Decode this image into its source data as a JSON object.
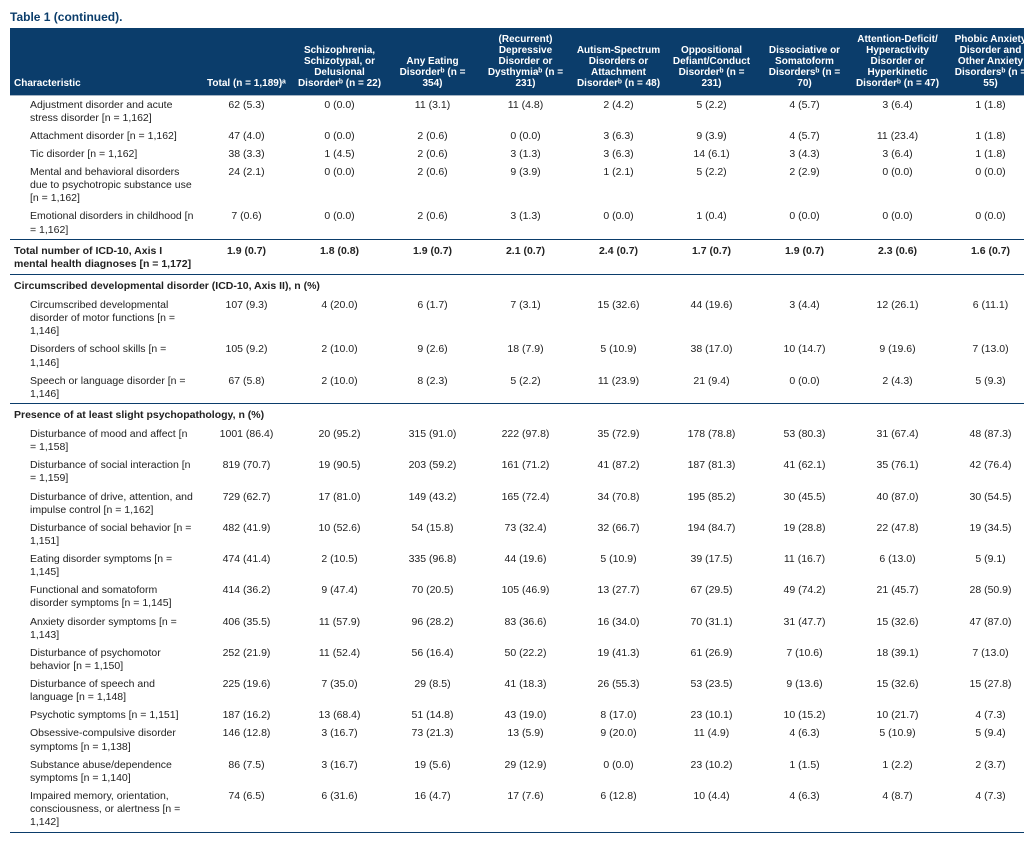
{
  "title": "Table 1 (continued).",
  "columns": [
    "Characteristic",
    "Total\n(n = 1,189)ᵃ",
    "Schizophrenia, Schizotypal, or Delusional Disorderᵇ (n = 22)",
    "Any Eating Disorderᵇ (n = 354)",
    "(Recurrent) Depressive Disorder or Dysthymiaᵇ (n = 231)",
    "Autism-Spectrum Disorders or Attachment Disorderᵇ (n = 48)",
    "Oppositional Defiant/Conduct Disorderᵇ (n = 231)",
    "Dissociative or Somatoform Disordersᵇ (n = 70)",
    "Attention-Deficit/ Hyperactivity Disorder or Hyperkinetic Disorderᵇ (n = 47)",
    "Phobic Anxiety Disorder and Other Anxiety Disordersᵇ (n = 55)"
  ],
  "rows": [
    {
      "type": "data",
      "cells": [
        "Adjustment disorder and acute stress disorder [n = 1,162]",
        "62 (5.3)",
        "0 (0.0)",
        "11 (3.1)",
        "11 (4.8)",
        "2 (4.2)",
        "5 (2.2)",
        "4 (5.7)",
        "3 (6.4)",
        "1 (1.8)"
      ]
    },
    {
      "type": "data",
      "cells": [
        "Attachment disorder [n = 1,162]",
        "47 (4.0)",
        "0 (0.0)",
        "2 (0.6)",
        "0 (0.0)",
        "3 (6.3)",
        "9 (3.9)",
        "4 (5.7)",
        "11 (23.4)",
        "1 (1.8)"
      ]
    },
    {
      "type": "data",
      "cells": [
        "Tic disorder [n = 1,162]",
        "38 (3.3)",
        "1 (4.5)",
        "2 (0.6)",
        "3 (1.3)",
        "3 (6.3)",
        "14 (6.1)",
        "3 (4.3)",
        "3 (6.4)",
        "1 (1.8)"
      ]
    },
    {
      "type": "data",
      "cells": [
        "Mental and behavioral disorders due to psychotropic substance use [n = 1,162]",
        "24 (2.1)",
        "0 (0.0)",
        "2 (0.6)",
        "9 (3.9)",
        "1 (2.1)",
        "5 (2.2)",
        "2 (2.9)",
        "0 (0.0)",
        "0 (0.0)"
      ]
    },
    {
      "type": "data",
      "cells": [
        "Emotional disorders in childhood [n = 1,162]",
        "7 (0.6)",
        "0 (0.0)",
        "2 (0.6)",
        "3 (1.3)",
        "0 (0.0)",
        "1 (0.4)",
        "0 (0.0)",
        "0 (0.0)",
        "0 (0.0)"
      ]
    },
    {
      "type": "section-data",
      "top": true,
      "cells": [
        "Total number of ICD-10, Axis I mental health diagnoses [n = 1,172]",
        "1.9 (0.7)",
        "1.8 (0.8)",
        "1.9 (0.7)",
        "2.1 (0.7)",
        "2.4 (0.7)",
        "1.7 (0.7)",
        "1.9 (0.7)",
        "2.3 (0.6)",
        "1.6 (0.7)"
      ]
    },
    {
      "type": "section",
      "top": true,
      "label": "Circumscribed developmental disorder (ICD-10, Axis II), n (%)"
    },
    {
      "type": "data",
      "cells": [
        "Circumscribed developmental disorder of motor functions [n = 1,146]",
        "107 (9.3)",
        "4 (20.0)",
        "6 (1.7)",
        "7 (3.1)",
        "15 (32.6)",
        "44 (19.6)",
        "3 (4.4)",
        "12 (26.1)",
        "6 (11.1)"
      ]
    },
    {
      "type": "data",
      "cells": [
        "Disorders of school skills [n = 1,146]",
        "105 (9.2)",
        "2 (10.0)",
        "9 (2.6)",
        "18 (7.9)",
        "5 (10.9)",
        "38 (17.0)",
        "10 (14.7)",
        "9 (19.6)",
        "7 (13.0)"
      ]
    },
    {
      "type": "data",
      "cells": [
        "Speech or language disorder [n = 1,146]",
        "67 (5.8)",
        "2 (10.0)",
        "8 (2.3)",
        "5 (2.2)",
        "11 (23.9)",
        "21 (9.4)",
        "0 (0.0)",
        "2 (4.3)",
        "5 (9.3)"
      ]
    },
    {
      "type": "section",
      "top": true,
      "label": "Presence of at least slight psychopathology, n (%)"
    },
    {
      "type": "data",
      "cells": [
        "Disturbance of mood and affect [n = 1,158]",
        "1001 (86.4)",
        "20 (95.2)",
        "315 (91.0)",
        "222 (97.8)",
        "35 (72.9)",
        "178 (78.8)",
        "53 (80.3)",
        "31 (67.4)",
        "48 (87.3)"
      ]
    },
    {
      "type": "data",
      "cells": [
        "Disturbance of social interaction [n = 1,159]",
        "819 (70.7)",
        "19 (90.5)",
        "203 (59.2)",
        "161 (71.2)",
        "41 (87.2)",
        "187 (81.3)",
        "41 (62.1)",
        "35 (76.1)",
        "42 (76.4)"
      ]
    },
    {
      "type": "data",
      "cells": [
        "Disturbance of drive, attention, and impulse control [n = 1,162]",
        "729 (62.7)",
        "17 (81.0)",
        "149 (43.2)",
        "165 (72.4)",
        "34 (70.8)",
        "195 (85.2)",
        "30 (45.5)",
        "40 (87.0)",
        "30 (54.5)"
      ]
    },
    {
      "type": "data",
      "cells": [
        "Disturbance of social behavior [n = 1,151]",
        "482 (41.9)",
        "10 (52.6)",
        "54 (15.8)",
        "73 (32.4)",
        "32 (66.7)",
        "194 (84.7)",
        "19 (28.8)",
        "22 (47.8)",
        "19 (34.5)"
      ]
    },
    {
      "type": "data",
      "cells": [
        "Eating disorder symptoms [n = 1,145]",
        "474 (41.4)",
        "2 (10.5)",
        "335 (96.8)",
        "44 (19.6)",
        "5 (10.9)",
        "39 (17.5)",
        "11 (16.7)",
        "6 (13.0)",
        "5 (9.1)"
      ]
    },
    {
      "type": "data",
      "cells": [
        "Functional and somatoform disorder symptoms [n = 1,145]",
        "414 (36.2)",
        "9 (47.4)",
        "70 (20.5)",
        "105 (46.9)",
        "13 (27.7)",
        "67 (29.5)",
        "49 (74.2)",
        "21 (45.7)",
        "28 (50.9)"
      ]
    },
    {
      "type": "data",
      "cells": [
        "Anxiety disorder symptoms [n = 1,143]",
        "406 (35.5)",
        "11 (57.9)",
        "96 (28.2)",
        "83 (36.6)",
        "16 (34.0)",
        "70 (31.1)",
        "31 (47.7)",
        "15 (32.6)",
        "47 (87.0)"
      ]
    },
    {
      "type": "data",
      "cells": [
        "Disturbance of psychomotor behavior [n = 1,150]",
        "252 (21.9)",
        "11 (52.4)",
        "56 (16.4)",
        "50 (22.2)",
        "19 (41.3)",
        "61 (26.9)",
        "7 (10.6)",
        "18 (39.1)",
        "7 (13.0)"
      ]
    },
    {
      "type": "data",
      "cells": [
        "Disturbance of speech and language [n = 1,148]",
        "225 (19.6)",
        "7 (35.0)",
        "29 (8.5)",
        "41 (18.3)",
        "26 (55.3)",
        "53 (23.5)",
        "9 (13.6)",
        "15 (32.6)",
        "15 (27.8)"
      ]
    },
    {
      "type": "data",
      "cells": [
        "Psychotic symptoms [n = 1,151]",
        "187 (16.2)",
        "13 (68.4)",
        "51 (14.8)",
        "43 (19.0)",
        "8 (17.0)",
        "23 (10.1)",
        "10 (15.2)",
        "10 (21.7)",
        "4 (7.3)"
      ]
    },
    {
      "type": "data",
      "cells": [
        "Obsessive-compulsive disorder symptoms [n = 1,138]",
        "146 (12.8)",
        "3 (16.7)",
        "73 (21.3)",
        "13 (5.9)",
        "9 (20.0)",
        "11 (4.9)",
        "4 (6.3)",
        "5 (10.9)",
        "5 (9.4)"
      ]
    },
    {
      "type": "data",
      "cells": [
        "Substance abuse/dependence symptoms [n = 1,140]",
        "86 (7.5)",
        "3 (16.7)",
        "19 (5.6)",
        "29 (12.9)",
        "0 (0.0)",
        "23 (10.2)",
        "1 (1.5)",
        "1 (2.2)",
        "2 (3.7)"
      ]
    },
    {
      "type": "data",
      "cells": [
        "Impaired memory, orientation, consciousness, or alertness [n = 1,142]",
        "74 (6.5)",
        "6 (31.6)",
        "16 (4.7)",
        "17 (7.6)",
        "6 (12.8)",
        "10 (4.4)",
        "4 (6.3)",
        "4 (8.7)",
        "4 (7.3)"
      ]
    }
  ]
}
